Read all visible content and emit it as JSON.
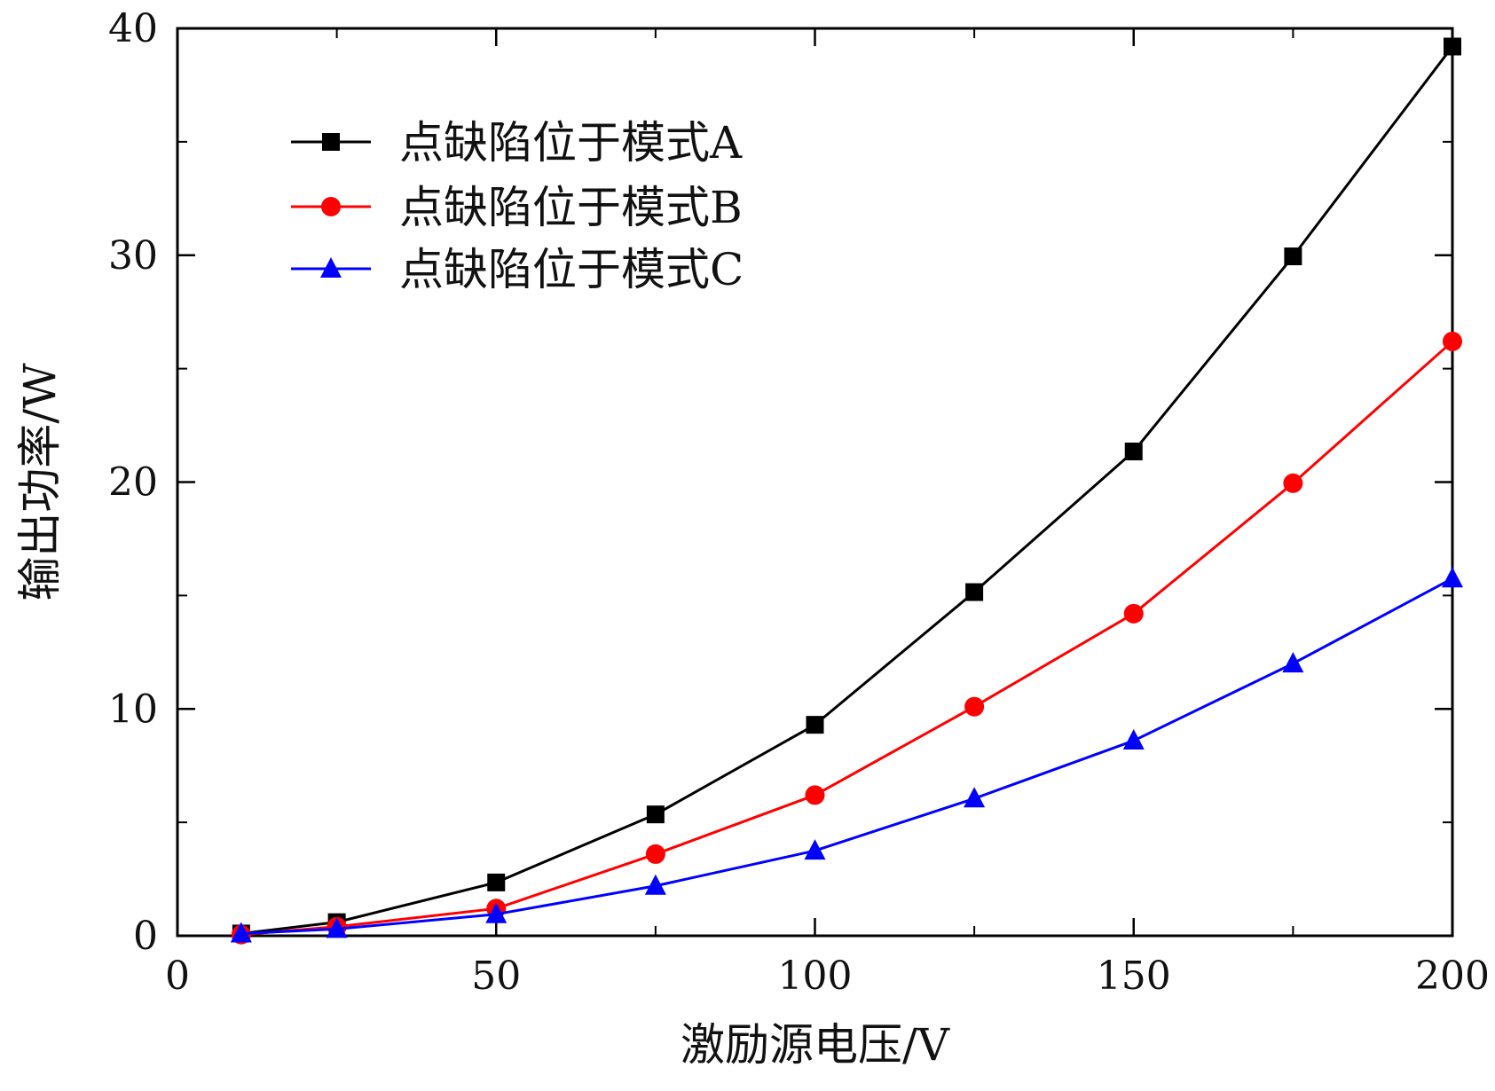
{
  "chart_data": {
    "type": "line",
    "title": "",
    "xlabel": "激励源电压/V",
    "ylabel": "输出功率/W",
    "xlim": [
      0,
      200
    ],
    "ylim": [
      0,
      40
    ],
    "x_ticks": [
      0,
      50,
      100,
      150,
      200
    ],
    "x_tick_labels": [
      "0",
      "50",
      "100",
      "150",
      "200"
    ],
    "y_ticks": [
      0,
      10,
      20,
      30,
      40
    ],
    "y_tick_labels": [
      "0",
      "10",
      "20",
      "30",
      "40"
    ],
    "y_minor_ticks": [
      5,
      15,
      25,
      35
    ],
    "x_minor_ticks": [
      25,
      75,
      125,
      175
    ],
    "grid": false,
    "legend_position": "top-left",
    "x": [
      10,
      25,
      50,
      75,
      100,
      125,
      150,
      175,
      200
    ],
    "series": [
      {
        "name": "点缺陷位于模式A",
        "color": "#000000",
        "marker": "square",
        "values": [
          0.1,
          0.6,
          2.35,
          5.35,
          9.3,
          15.15,
          21.35,
          29.95,
          39.2
        ]
      },
      {
        "name": "点缺陷位于模式B",
        "color": "#ff0000",
        "marker": "circle",
        "values": [
          0.05,
          0.4,
          1.2,
          3.6,
          6.2,
          10.1,
          14.2,
          19.95,
          26.2
        ]
      },
      {
        "name": "点缺陷位于模式C",
        "color": "#0000ff",
        "marker": "triangle",
        "values": [
          0.1,
          0.3,
          0.95,
          2.2,
          3.75,
          6.05,
          8.6,
          12.0,
          15.75
        ]
      }
    ]
  }
}
